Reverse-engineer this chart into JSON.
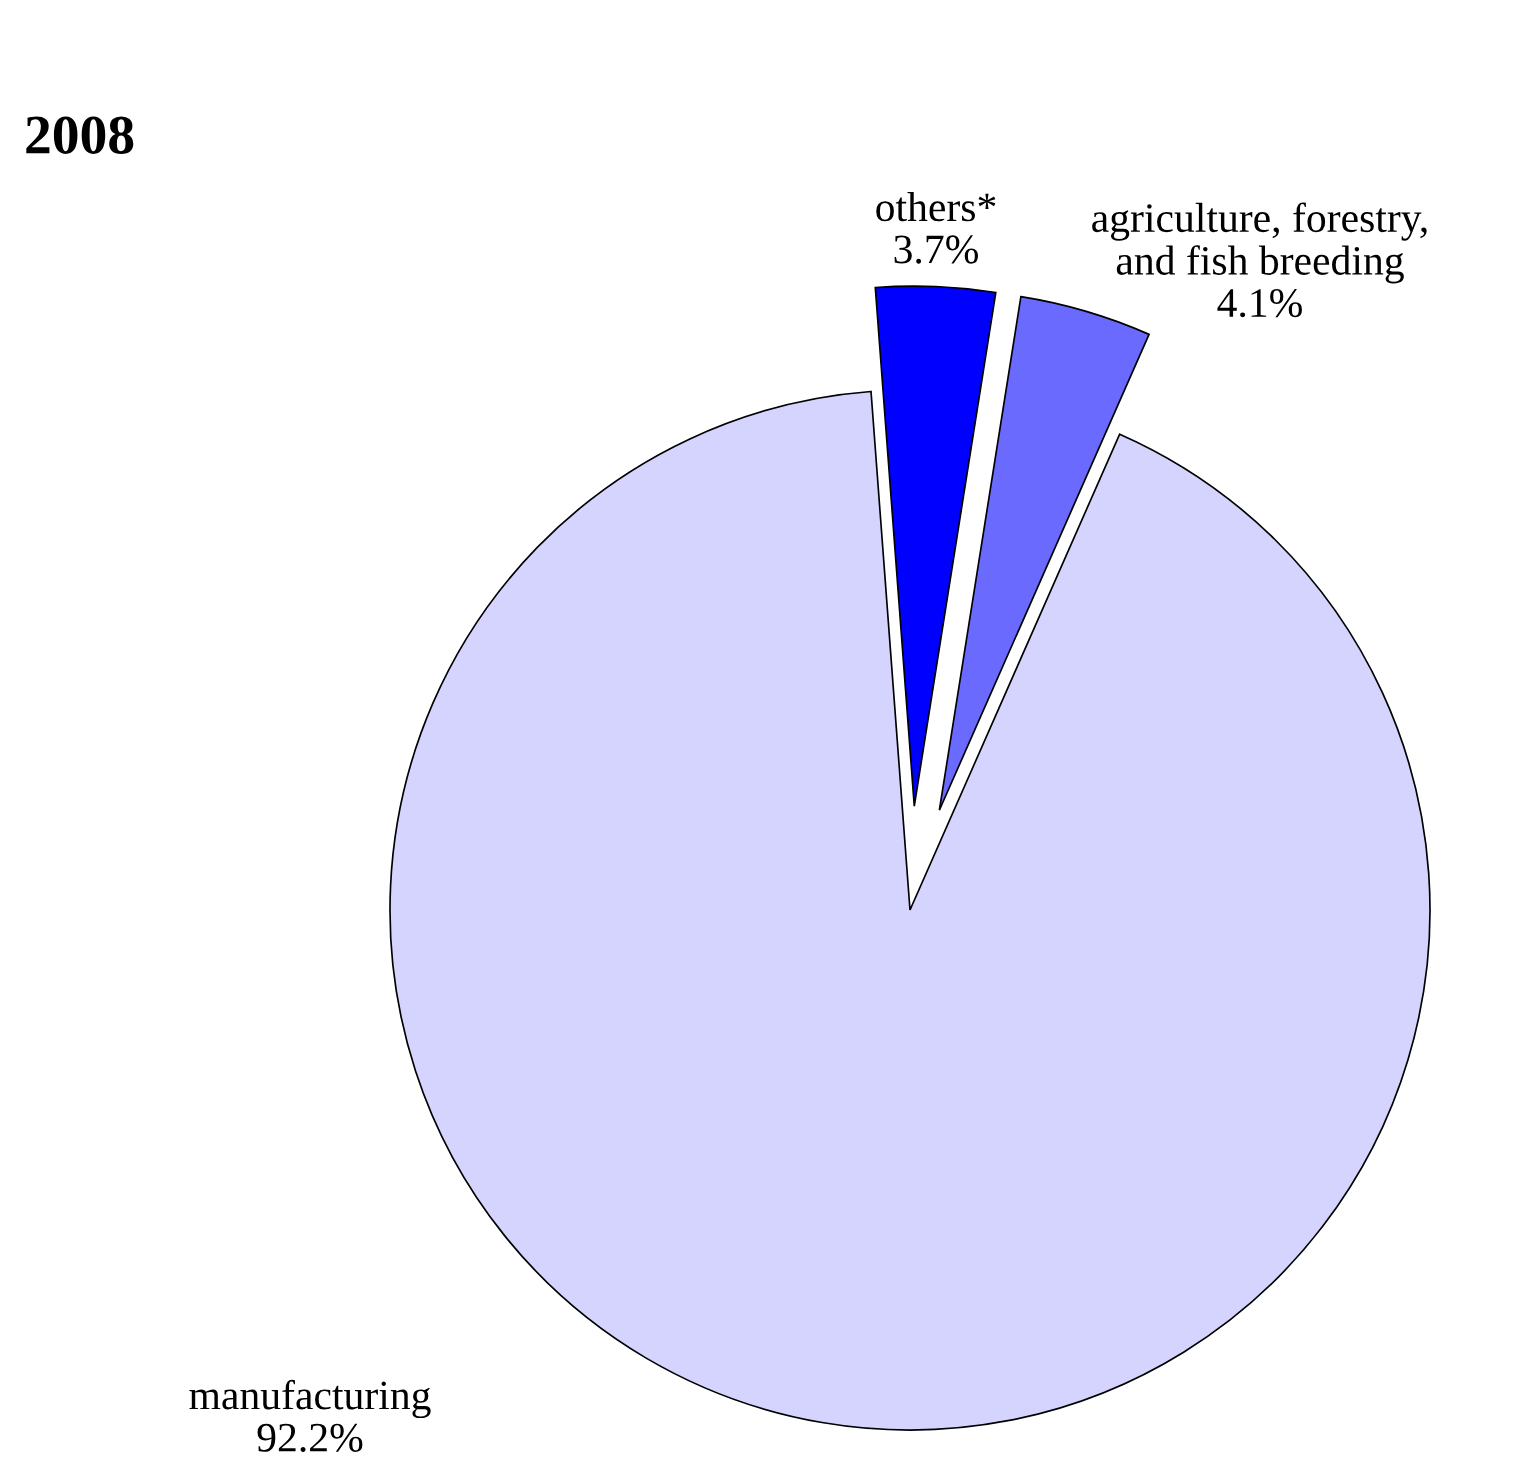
{
  "chart_data": {
    "type": "pie",
    "title": "2008",
    "categories": [
      "manufacturing",
      "agriculture, forestry,\nand fish breeding",
      "others*"
    ],
    "values": [
      92.2,
      4.1,
      3.7
    ],
    "value_labels": [
      "92.2%",
      "4.1%",
      "3.7%"
    ],
    "colors": [
      "#d4d4ff",
      "#6a6aff",
      "#0000ff"
    ]
  }
}
